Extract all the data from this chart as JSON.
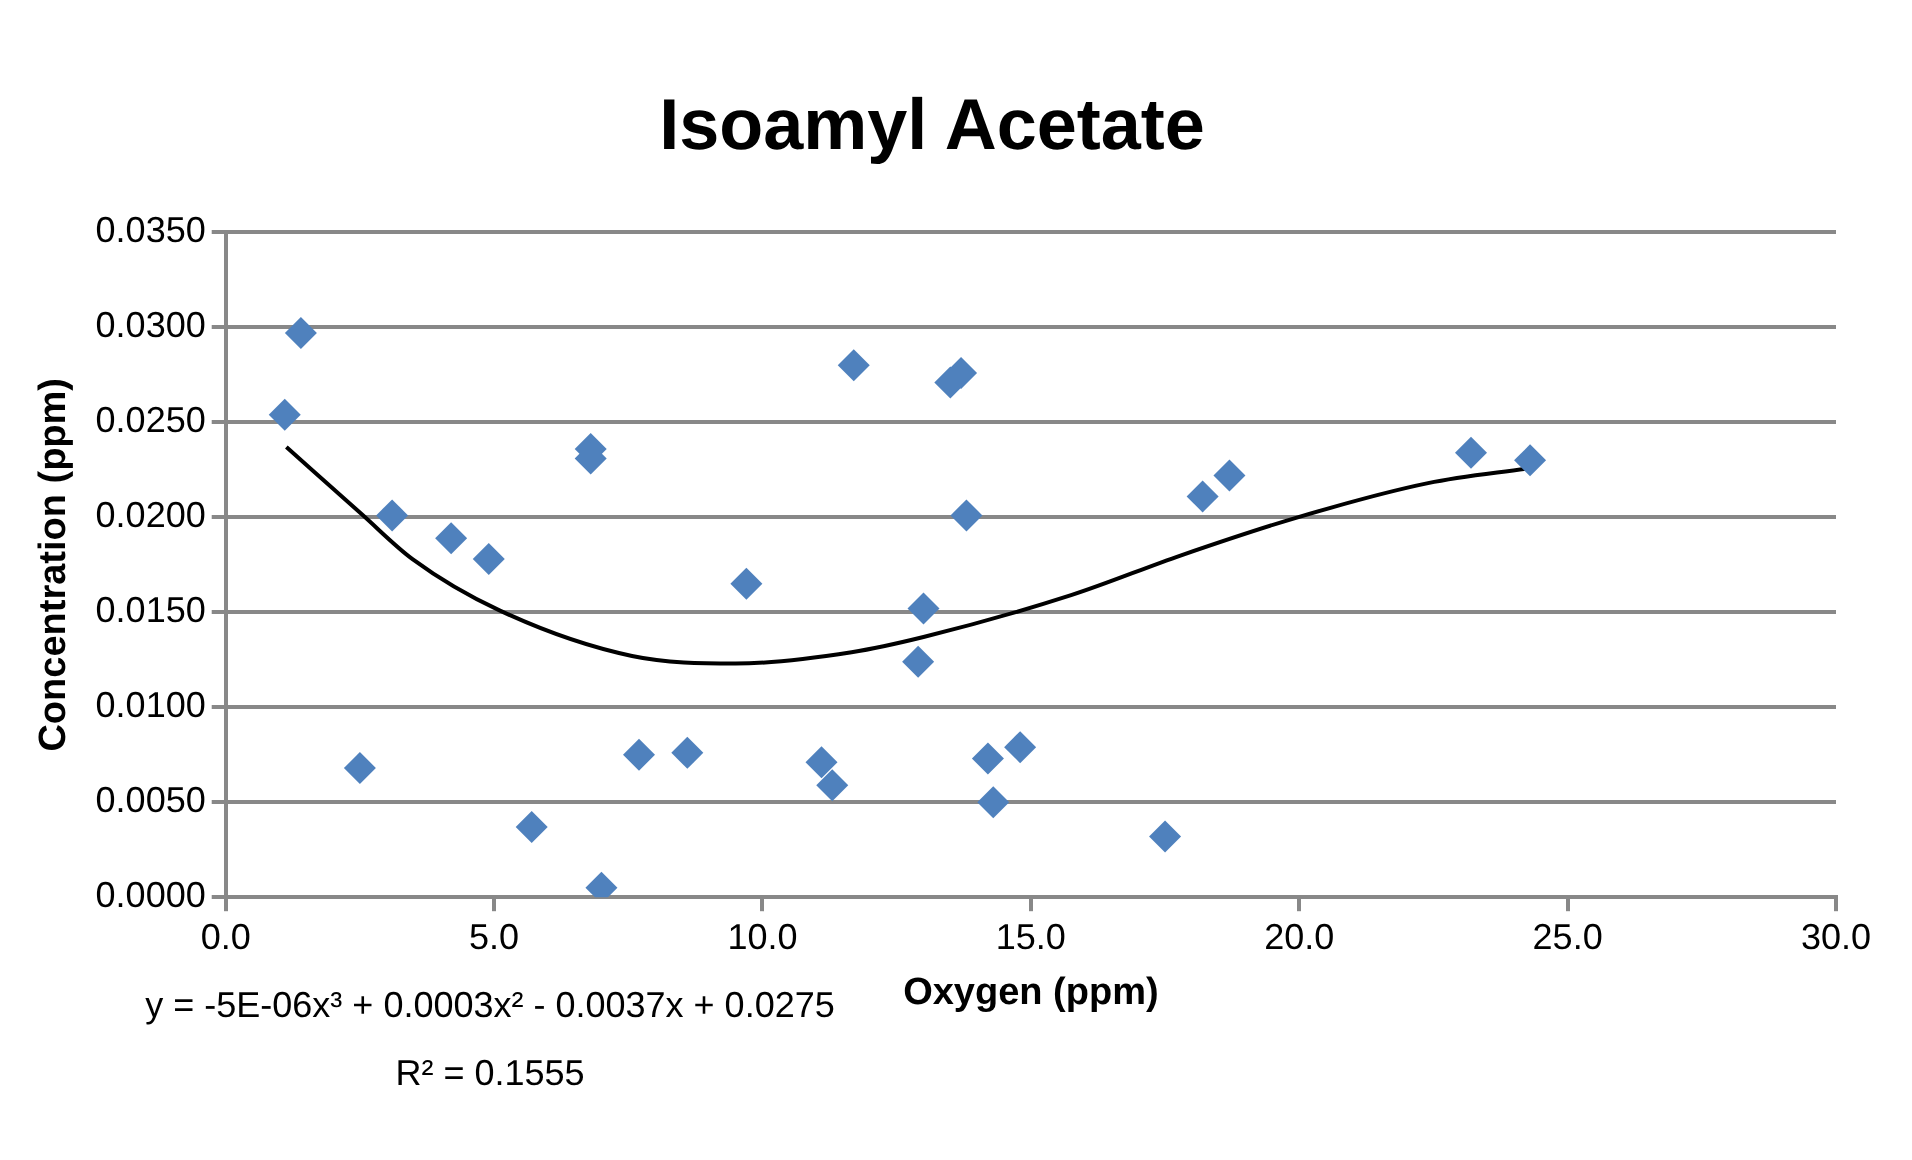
{
  "chart_data": {
    "type": "scatter",
    "title": "Isoamyl Acetate",
    "xlabel": "Oxygen (ppm)",
    "ylabel": "Concentration (ppm)",
    "annotations": [
      "y = -5E-06x³ + 0.0003x² - 0.0037x + 0.0275",
      "R² = 0.1555"
    ],
    "xlim": [
      0,
      30
    ],
    "xticks": [
      {
        "value": 0,
        "label": "0.0"
      },
      {
        "value": 5,
        "label": "5.0"
      },
      {
        "value": 10,
        "label": "10.0"
      },
      {
        "value": 15,
        "label": "15.0"
      },
      {
        "value": 20,
        "label": "20.0"
      },
      {
        "value": 25,
        "label": "25.0"
      },
      {
        "value": 30,
        "label": "30.0"
      }
    ],
    "ylim": [
      0,
      0.035
    ],
    "yticks": [
      {
        "value": 0,
        "label": "0.0000"
      },
      {
        "value": 0.005,
        "label": "0.0050"
      },
      {
        "value": 0.01,
        "label": "0.0100"
      },
      {
        "value": 0.015,
        "label": "0.0150"
      },
      {
        "value": 0.02,
        "label": "0.0200"
      },
      {
        "value": 0.025,
        "label": "0.0250"
      },
      {
        "value": 0.03,
        "label": "0.0300"
      },
      {
        "value": 0.035,
        "label": "0.0350"
      }
    ],
    "grid": "y",
    "legend": false,
    "series": [
      {
        "color": "#4f81bd",
        "marker": "diamond",
        "x": [
          1.1,
          1.4,
          2.5,
          3.1,
          4.2,
          4.9,
          5.7,
          6.8,
          6.8,
          7.0,
          7.7,
          8.6,
          9.7,
          11.1,
          11.3,
          11.7,
          12.9,
          13.0,
          13.5,
          13.7,
          13.8,
          14.2,
          14.3,
          14.8,
          17.5,
          18.2,
          18.7,
          23.2,
          24.3
        ],
        "values": [
          0.0254,
          0.0297,
          0.0068,
          0.0201,
          0.0189,
          0.0178,
          0.0037,
          0.0236,
          0.0231,
          0.0005,
          0.0075,
          0.0076,
          0.0165,
          0.0071,
          0.0059,
          0.028,
          0.0124,
          0.0152,
          0.0271,
          0.0276,
          0.0201,
          0.0073,
          0.005,
          0.0079,
          0.0032,
          0.0211,
          0.0222,
          0.0234,
          0.023
        ]
      },
      {
        "type": "line",
        "color": "#000000",
        "marker": "none",
        "line_style": "solid",
        "x": [
          1.13,
          2.52,
          3.48,
          5.1,
          7.57,
          9.5,
          11.66,
          13.0,
          15.75,
          17.8,
          19.97,
          22.4,
          24.33
        ],
        "values": [
          0.0237,
          0.0202,
          0.0178,
          0.0151,
          0.0127,
          0.0123,
          0.0129,
          0.0137,
          0.0159,
          0.018,
          0.02,
          0.0218,
          0.0226
        ]
      }
    ]
  }
}
